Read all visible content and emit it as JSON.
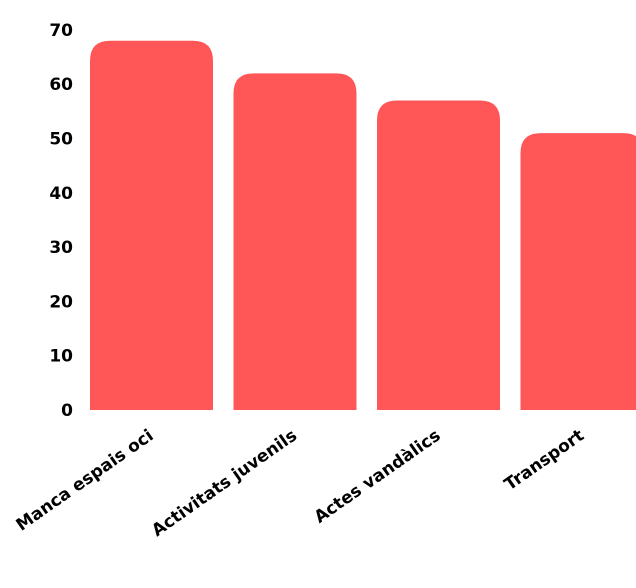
{
  "chart_data": {
    "type": "bar",
    "categories": [
      "Manca espais oci",
      "Activitats juvenils",
      "Actes vandàlics",
      "Transport"
    ],
    "values": [
      68,
      62,
      57,
      51
    ],
    "yticks": [
      0,
      10,
      20,
      30,
      40,
      50,
      60,
      70
    ],
    "ylim": [
      0,
      70
    ],
    "title": "",
    "xlabel": "",
    "ylabel": "",
    "grid": false,
    "bar_color": "#ff5757"
  }
}
